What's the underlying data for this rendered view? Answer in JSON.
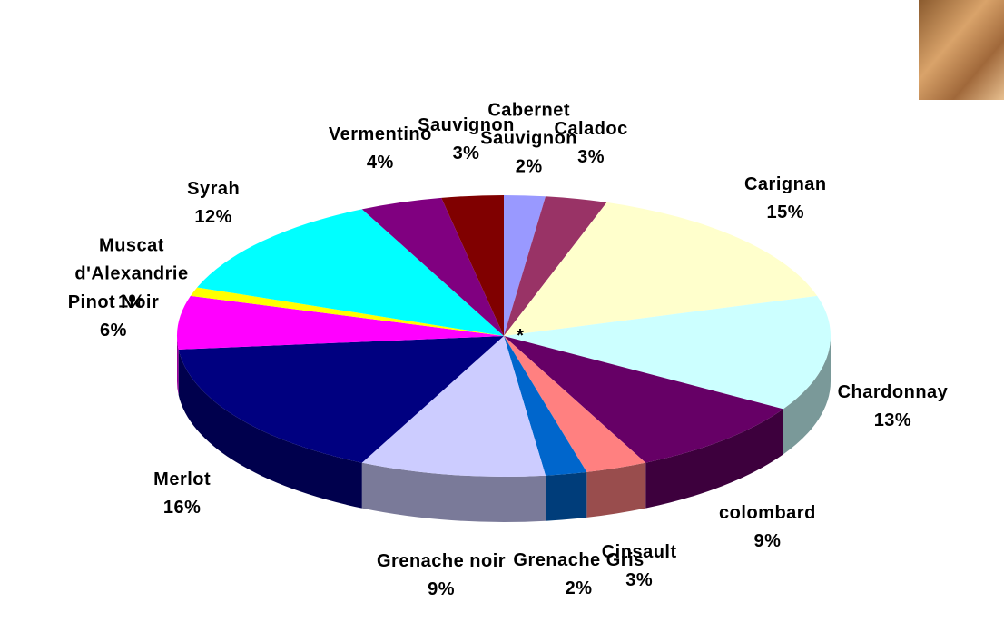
{
  "chart_data": {
    "type": "pie",
    "categories": [
      "Cabernet Sauvignon",
      "Caladoc",
      "Carignan",
      "Chardonnay",
      "colombard",
      "Cinsault",
      "Grenache Gris",
      "Grenache noir",
      "Merlot",
      "Pinot Noir",
      "Muscat d'Alexandrie",
      "Syrah",
      "Vermentino",
      "Sauvignon"
    ],
    "values": [
      2,
      3,
      15,
      13,
      9,
      3,
      2,
      9,
      16,
      6,
      1,
      12,
      4,
      3
    ],
    "value_labels": [
      "2%",
      "3%",
      "15%",
      "13%",
      "9%",
      "3%",
      "2%",
      "9%",
      "16%",
      "6%",
      "1%",
      "12%",
      "4%",
      "3%"
    ],
    "colors": [
      "#9999ff",
      "#993366",
      "#ffffcc",
      "#ccffff",
      "#660066",
      "#ff8080",
      "#0066cc",
      "#ccccff",
      "#000080",
      "#ff00ff",
      "#ffff00",
      "#00ffff",
      "#800080",
      "#800000"
    ],
    "annotation": "*"
  }
}
